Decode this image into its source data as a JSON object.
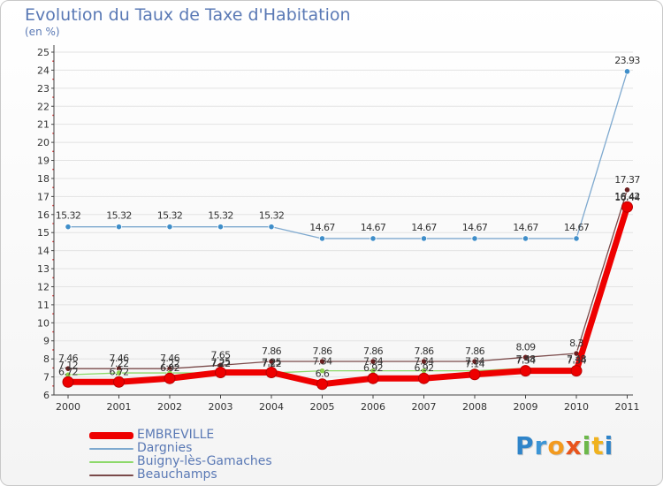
{
  "header": {
    "title": "Evolution du Taux de Taxe d'Habitation",
    "unit": "(en %)"
  },
  "colors": {
    "axis": "#444444",
    "grid": "#e3e3e3",
    "text": "#333333",
    "title": "#5a79b5"
  },
  "chart_data": {
    "type": "line",
    "title": "Evolution du Taux de Taxe d'Habitation",
    "ylabel": "(en %)",
    "xlabel": "",
    "ylim": [
      6,
      25
    ],
    "yticks": [
      6,
      7,
      8,
      9,
      10,
      11,
      12,
      13,
      14,
      15,
      16,
      17,
      18,
      19,
      20,
      21,
      22,
      23,
      24,
      25
    ],
    "categories": [
      "2000",
      "2001",
      "2002",
      "2003",
      "2004",
      "2005",
      "2006",
      "2007",
      "2008",
      "2009",
      "2010",
      "2011"
    ],
    "series": [
      {
        "name": "Dargnies",
        "color": "#7ea9cf",
        "marker": "#3f8ec9",
        "values": [
          15.32,
          15.32,
          15.32,
          15.32,
          15.32,
          14.67,
          14.67,
          14.67,
          14.67,
          14.67,
          14.67,
          23.93
        ],
        "labels": [
          "15.32",
          "15.32",
          "15.32",
          "15.32",
          "15.32",
          "14.67",
          "14.67",
          "14.67",
          "14.67",
          "14.67",
          "14.67",
          "23.93"
        ]
      },
      {
        "name": "Beauchamps",
        "color": "#7a4a4a",
        "marker": "#6b1f1f",
        "values": [
          7.46,
          7.46,
          7.46,
          7.65,
          7.86,
          7.86,
          7.86,
          7.86,
          7.86,
          8.09,
          8.3,
          17.37
        ],
        "labels": [
          "7.46",
          "7.46",
          "7.46",
          "7.65",
          "7.86",
          "7.86",
          "7.86",
          "7.86",
          "7.86",
          "8.09",
          "8.3",
          "17.37"
        ]
      },
      {
        "name": "Buigny-lès-Gamaches",
        "color": "#8dd96a",
        "marker": "#8fd24f",
        "values": [
          7.12,
          7.22,
          7.22,
          7.22,
          7.22,
          7.34,
          7.34,
          7.34,
          7.34,
          7.48,
          7.48,
          16.44
        ],
        "labels": [
          "7.12",
          "7.22",
          "7.22",
          "7.22",
          "7.22",
          "7.34",
          "7.34",
          "7.34",
          "7.34",
          "7.48",
          "7.48",
          "16.44"
        ]
      },
      {
        "name": "EMBREVILLE",
        "color": "#ee0000",
        "marker": "#ee0000",
        "values": [
          6.72,
          6.72,
          6.92,
          7.25,
          7.25,
          6.6,
          6.92,
          6.92,
          7.14,
          7.34,
          7.34,
          16.42
        ],
        "labels": [
          "6.72",
          "6.72",
          "6.92",
          "7.25",
          "7.25",
          "6.6",
          "6.92",
          "6.92",
          "7.14",
          "7.34",
          "7.34",
          "16.42"
        ]
      }
    ],
    "legend": [
      "EMBREVILLE",
      "Dargnies",
      "Buigny-lès-Gamaches",
      "Beauchamps"
    ],
    "legend_position": "bottom-left"
  },
  "legend": {
    "items": [
      {
        "label": "EMBREVILLE",
        "color": "#ee0000"
      },
      {
        "label": "Dargnies",
        "color": "#7ea9cf"
      },
      {
        "label": "Buigny-lès-Gamaches",
        "color": "#8dd96a"
      },
      {
        "label": "Beauchamps",
        "color": "#7a4a4a"
      }
    ]
  },
  "logo": {
    "letters": [
      "P",
      "r",
      "o",
      "x",
      "i",
      "t",
      "i"
    ],
    "colors": [
      "#2f84c9",
      "#3c95d6",
      "#f39a1e",
      "#e8541c",
      "#6cb84a",
      "#f0b21e",
      "#2f84c9"
    ]
  }
}
